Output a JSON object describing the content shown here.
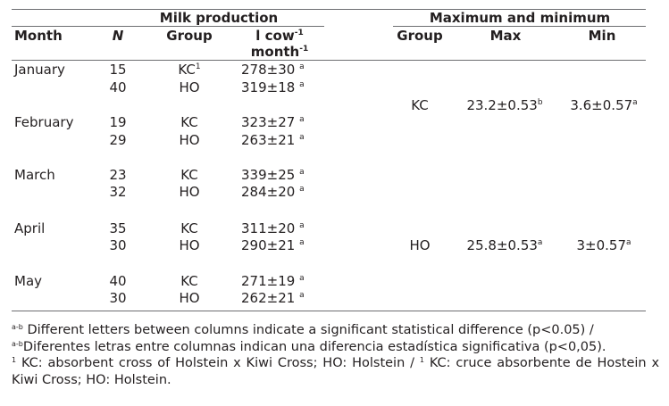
{
  "headers": {
    "milk_production": "Milk production",
    "max_min": "Maximum and minimum",
    "month": "Month",
    "n": "N",
    "group": "Group",
    "milk_unit_line1": "l cow",
    "milk_unit_line1_sup": "-1",
    "milk_unit_line2": "month",
    "milk_unit_line2_sup": "-1",
    "group2": "Group",
    "max": "Max",
    "min": "Min"
  },
  "rows": [
    {
      "month": "January",
      "n": "15",
      "group": "KC",
      "group_sup": "1",
      "milk": "278±30",
      "milk_sup": "a"
    },
    {
      "month": "",
      "n": "40",
      "group": "HO",
      "group_sup": "",
      "milk": "319±18",
      "milk_sup": "a"
    },
    {
      "month": "February",
      "n": "19",
      "group": "KC",
      "group_sup": "",
      "milk": "323±27",
      "milk_sup": "a"
    },
    {
      "month": "",
      "n": "29",
      "group": "HO",
      "group_sup": "",
      "milk": "263±21",
      "milk_sup": "a"
    },
    {
      "month": "March",
      "n": "23",
      "group": "KC",
      "group_sup": "",
      "milk": "339±25",
      "milk_sup": "a"
    },
    {
      "month": "",
      "n": "32",
      "group": "HO",
      "group_sup": "",
      "milk": "284±20",
      "milk_sup": "a"
    },
    {
      "month": "April",
      "n": "35",
      "group": "KC",
      "group_sup": "",
      "milk": "311±20",
      "milk_sup": "a"
    },
    {
      "month": "",
      "n": "30",
      "group": "HO",
      "group_sup": "",
      "milk": "290±21",
      "milk_sup": "a"
    },
    {
      "month": "May",
      "n": "40",
      "group": "KC",
      "group_sup": "",
      "milk": "271±19",
      "milk_sup": "a"
    },
    {
      "month": "",
      "n": "30",
      "group": "HO",
      "group_sup": "",
      "milk": "262±21",
      "milk_sup": "a"
    }
  ],
  "maxmin": [
    {
      "group": "KC",
      "max": "23.2±0.53",
      "max_sup": "b",
      "min": "3.6±0.57",
      "min_sup": "a"
    },
    {
      "group": "HO",
      "max": "25.8±0.53",
      "max_sup": "a",
      "min": "3±0.57",
      "min_sup": "a"
    }
  ],
  "footnotes": {
    "sup_ab": "a-b",
    "line1": "Different letters between columns indicate a significant statistical difference (p<0.05) /",
    "line2": "Diferentes letras entre columnas indican una diferencia estadística significativa (p<0,05).",
    "sup_1": "1",
    "line3a": "KC: absorbent cross of Holstein x Kiwi Cross; HO: Holstein /",
    "line3b": "KC: cruce absorbente de Hostein x Kiwi Cross; HO: Holstein."
  }
}
